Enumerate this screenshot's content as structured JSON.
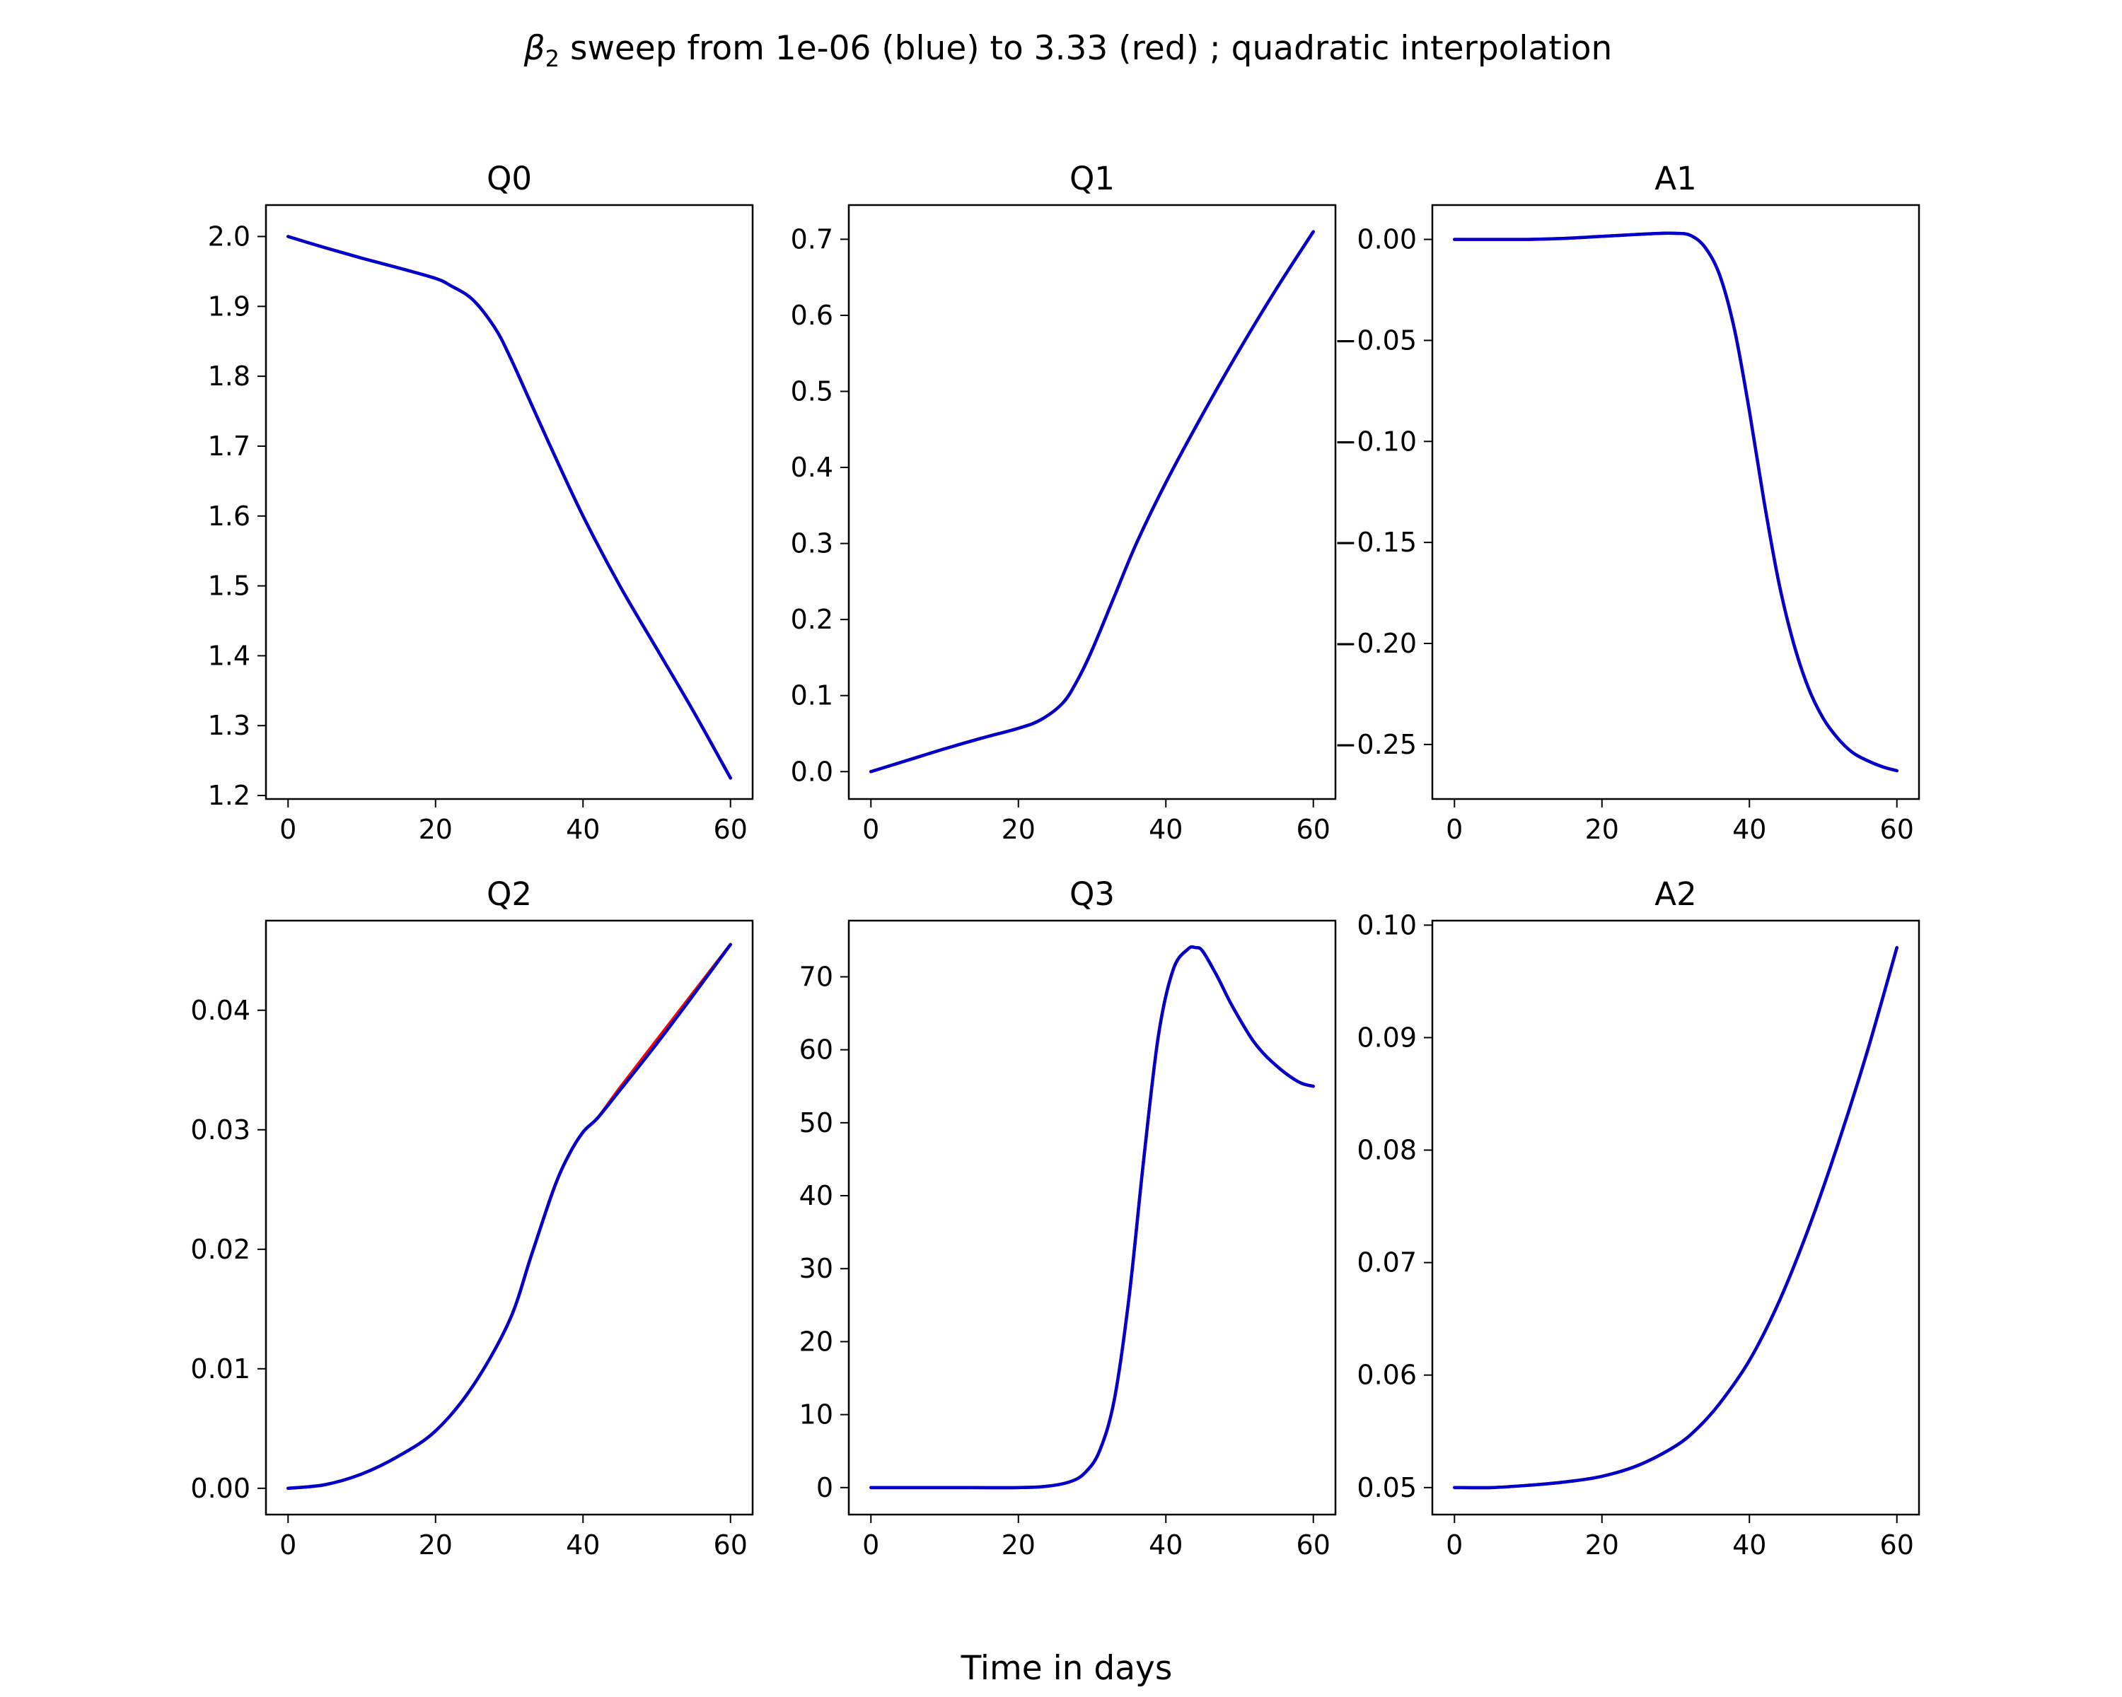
{
  "figure": {
    "suptitle_prefix": "β",
    "suptitle_sub": "2",
    "suptitle_rest": " sweep from 1e-06 (blue) to 3.33 (red) ; quadratic interpolation",
    "xlabel": "Time in days"
  },
  "chart_data": [
    {
      "type": "line",
      "title": "Q0",
      "xlim": [
        -3,
        63
      ],
      "ylim": [
        1.195,
        2.045
      ],
      "xticks": [
        0,
        20,
        40,
        60
      ],
      "yticks": [
        1.2,
        1.3,
        1.4,
        1.5,
        1.6,
        1.7,
        1.8,
        1.9,
        2.0
      ],
      "ytick_labels": [
        "1.2",
        "1.3",
        "1.4",
        "1.5",
        "1.6",
        "1.7",
        "1.8",
        "1.9",
        "2.0"
      ],
      "xtick_labels": [
        "0",
        "20",
        "40",
        "60"
      ],
      "series": [
        {
          "color": "#ff0000",
          "x": [
            0,
            5,
            10,
            15,
            20,
            22,
            25,
            28,
            30,
            33,
            36,
            40,
            45,
            50,
            55,
            60
          ],
          "y": [
            2.0,
            1.984,
            1.969,
            1.955,
            1.94,
            1.93,
            1.91,
            1.87,
            1.83,
            1.76,
            1.69,
            1.6,
            1.5,
            1.41,
            1.32,
            1.225
          ]
        },
        {
          "color": "#0000cc",
          "x": [
            0,
            5,
            10,
            15,
            20,
            22,
            25,
            28,
            30,
            33,
            36,
            40,
            45,
            50,
            55,
            60
          ],
          "y": [
            2.0,
            1.984,
            1.969,
            1.955,
            1.94,
            1.93,
            1.91,
            1.87,
            1.83,
            1.76,
            1.69,
            1.6,
            1.5,
            1.41,
            1.32,
            1.225
          ]
        }
      ]
    },
    {
      "type": "line",
      "title": "Q1",
      "xlim": [
        -3,
        63
      ],
      "ylim": [
        -0.036,
        0.745
      ],
      "xticks": [
        0,
        20,
        40,
        60
      ],
      "yticks": [
        0.0,
        0.1,
        0.2,
        0.3,
        0.4,
        0.5,
        0.6,
        0.7
      ],
      "ytick_labels": [
        "0.0",
        "0.1",
        "0.2",
        "0.3",
        "0.4",
        "0.5",
        "0.6",
        "0.7"
      ],
      "xtick_labels": [
        "0",
        "20",
        "40",
        "60"
      ],
      "series": [
        {
          "color": "#ff0000",
          "x": [
            0,
            5,
            10,
            15,
            20,
            23,
            26,
            28,
            30,
            33,
            36,
            40,
            45,
            50,
            55,
            60
          ],
          "y": [
            0.0,
            0.015,
            0.03,
            0.044,
            0.057,
            0.068,
            0.09,
            0.12,
            0.16,
            0.23,
            0.3,
            0.38,
            0.47,
            0.555,
            0.635,
            0.71
          ]
        },
        {
          "color": "#0000cc",
          "x": [
            0,
            5,
            10,
            15,
            20,
            23,
            26,
            28,
            30,
            33,
            36,
            40,
            45,
            50,
            55,
            60
          ],
          "y": [
            0.0,
            0.015,
            0.03,
            0.044,
            0.057,
            0.068,
            0.09,
            0.12,
            0.16,
            0.23,
            0.3,
            0.38,
            0.47,
            0.555,
            0.635,
            0.71
          ]
        }
      ]
    },
    {
      "type": "line",
      "title": "A1",
      "xlim": [
        -3,
        63
      ],
      "ylim": [
        -0.277,
        0.017
      ],
      "xticks": [
        0,
        20,
        40,
        60
      ],
      "yticks": [
        0.0,
        -0.05,
        -0.1,
        -0.15,
        -0.2,
        -0.25
      ],
      "ytick_labels": [
        "0.00",
        "−0.05",
        "−0.10",
        "−0.15",
        "−0.20",
        "−0.25"
      ],
      "xtick_labels": [
        "0",
        "20",
        "40",
        "60"
      ],
      "series": [
        {
          "color": "#ff0000",
          "x": [
            0,
            5,
            10,
            15,
            20,
            25,
            28,
            30,
            32,
            34,
            36,
            38,
            40,
            42,
            44,
            46,
            48,
            50,
            52,
            54,
            56,
            58,
            60
          ],
          "y": [
            0.0,
            0.0,
            0.0,
            0.0005,
            0.0015,
            0.0025,
            0.003,
            0.003,
            0.002,
            -0.004,
            -0.018,
            -0.045,
            -0.085,
            -0.13,
            -0.17,
            -0.2,
            -0.222,
            -0.237,
            -0.247,
            -0.254,
            -0.258,
            -0.261,
            -0.263
          ]
        },
        {
          "color": "#0000cc",
          "x": [
            0,
            5,
            10,
            15,
            20,
            25,
            28,
            30,
            32,
            34,
            36,
            38,
            40,
            42,
            44,
            46,
            48,
            50,
            52,
            54,
            56,
            58,
            60
          ],
          "y": [
            0.0,
            0.0,
            0.0,
            0.0005,
            0.0015,
            0.0025,
            0.003,
            0.003,
            0.002,
            -0.004,
            -0.018,
            -0.045,
            -0.085,
            -0.13,
            -0.17,
            -0.2,
            -0.222,
            -0.237,
            -0.247,
            -0.254,
            -0.258,
            -0.261,
            -0.263
          ]
        }
      ]
    },
    {
      "type": "line",
      "title": "Q2",
      "xlim": [
        -3,
        63
      ],
      "ylim": [
        -0.0022,
        0.0475
      ],
      "xticks": [
        0,
        20,
        40,
        60
      ],
      "yticks": [
        0.0,
        0.01,
        0.02,
        0.03,
        0.04
      ],
      "ytick_labels": [
        "0.00",
        "0.01",
        "0.02",
        "0.03",
        "0.04"
      ],
      "xtick_labels": [
        "0",
        "20",
        "40",
        "60"
      ],
      "series": [
        {
          "color": "#ff0000",
          "x": [
            0,
            5,
            10,
            15,
            20,
            25,
            30,
            33,
            36,
            38,
            40,
            42,
            45,
            50,
            55,
            60
          ],
          "y": [
            0.0,
            0.0003,
            0.0012,
            0.0027,
            0.0048,
            0.0085,
            0.014,
            0.0195,
            0.025,
            0.0278,
            0.0298,
            0.031,
            0.0335,
            0.0375,
            0.0415,
            0.0455
          ]
        },
        {
          "color": "#0000cc",
          "x": [
            0,
            5,
            10,
            15,
            20,
            25,
            30,
            33,
            36,
            38,
            40,
            42,
            45,
            50,
            55,
            60
          ],
          "y": [
            0.0,
            0.0003,
            0.0012,
            0.0027,
            0.0048,
            0.0085,
            0.014,
            0.0195,
            0.025,
            0.0278,
            0.0298,
            0.031,
            0.0333,
            0.0372,
            0.0413,
            0.0455
          ]
        }
      ]
    },
    {
      "type": "line",
      "title": "Q3",
      "xlim": [
        -3,
        63
      ],
      "ylim": [
        -3.7,
        77.7
      ],
      "xticks": [
        0,
        20,
        40,
        60
      ],
      "yticks": [
        0,
        10,
        20,
        30,
        40,
        50,
        60,
        70
      ],
      "ytick_labels": [
        "0",
        "10",
        "20",
        "30",
        "40",
        "50",
        "60",
        "70"
      ],
      "xtick_labels": [
        "0",
        "20",
        "40",
        "60"
      ],
      "series": [
        {
          "color": "#ff0000",
          "x": [
            0,
            10,
            20,
            24,
            27,
            29,
            31,
            33,
            35,
            37,
            39,
            41,
            43,
            44,
            45,
            47,
            49,
            52,
            55,
            58,
            60
          ],
          "y": [
            0,
            0,
            0,
            0.2,
            0.8,
            2,
            5,
            12,
            26,
            45,
            62,
            71,
            73.8,
            74,
            73.5,
            70,
            66,
            61,
            57.8,
            55.6,
            55
          ]
        },
        {
          "color": "#0000cc",
          "x": [
            0,
            10,
            20,
            24,
            27,
            29,
            31,
            33,
            35,
            37,
            39,
            41,
            43,
            44,
            45,
            47,
            49,
            52,
            55,
            58,
            60
          ],
          "y": [
            0,
            0,
            0,
            0.2,
            0.8,
            2,
            5,
            12,
            26,
            45,
            62,
            71,
            73.8,
            74,
            73.5,
            70,
            66,
            61,
            57.8,
            55.6,
            55
          ]
        }
      ]
    },
    {
      "type": "line",
      "title": "A2",
      "xlim": [
        -3,
        63
      ],
      "ylim": [
        0.0476,
        0.1004
      ],
      "xticks": [
        0,
        20,
        40,
        60
      ],
      "yticks": [
        0.05,
        0.06,
        0.07,
        0.08,
        0.09,
        0.1
      ],
      "ytick_labels": [
        "0.05",
        "0.06",
        "0.07",
        "0.08",
        "0.09",
        "0.10"
      ],
      "xtick_labels": [
        "0",
        "20",
        "40",
        "60"
      ],
      "series": [
        {
          "color": "#ff0000",
          "x": [
            0,
            5,
            10,
            15,
            20,
            25,
            30,
            33,
            36,
            40,
            44,
            48,
            52,
            56,
            60
          ],
          "y": [
            0.05,
            0.05,
            0.0502,
            0.0505,
            0.051,
            0.052,
            0.0537,
            0.0553,
            0.0575,
            0.0613,
            0.0665,
            0.073,
            0.0805,
            0.0888,
            0.098
          ]
        },
        {
          "color": "#0000cc",
          "x": [
            0,
            5,
            10,
            15,
            20,
            25,
            30,
            33,
            36,
            40,
            44,
            48,
            52,
            56,
            60
          ],
          "y": [
            0.05,
            0.05,
            0.0502,
            0.0505,
            0.051,
            0.052,
            0.0537,
            0.0553,
            0.0575,
            0.0613,
            0.0665,
            0.073,
            0.0805,
            0.0888,
            0.098
          ]
        }
      ]
    }
  ]
}
